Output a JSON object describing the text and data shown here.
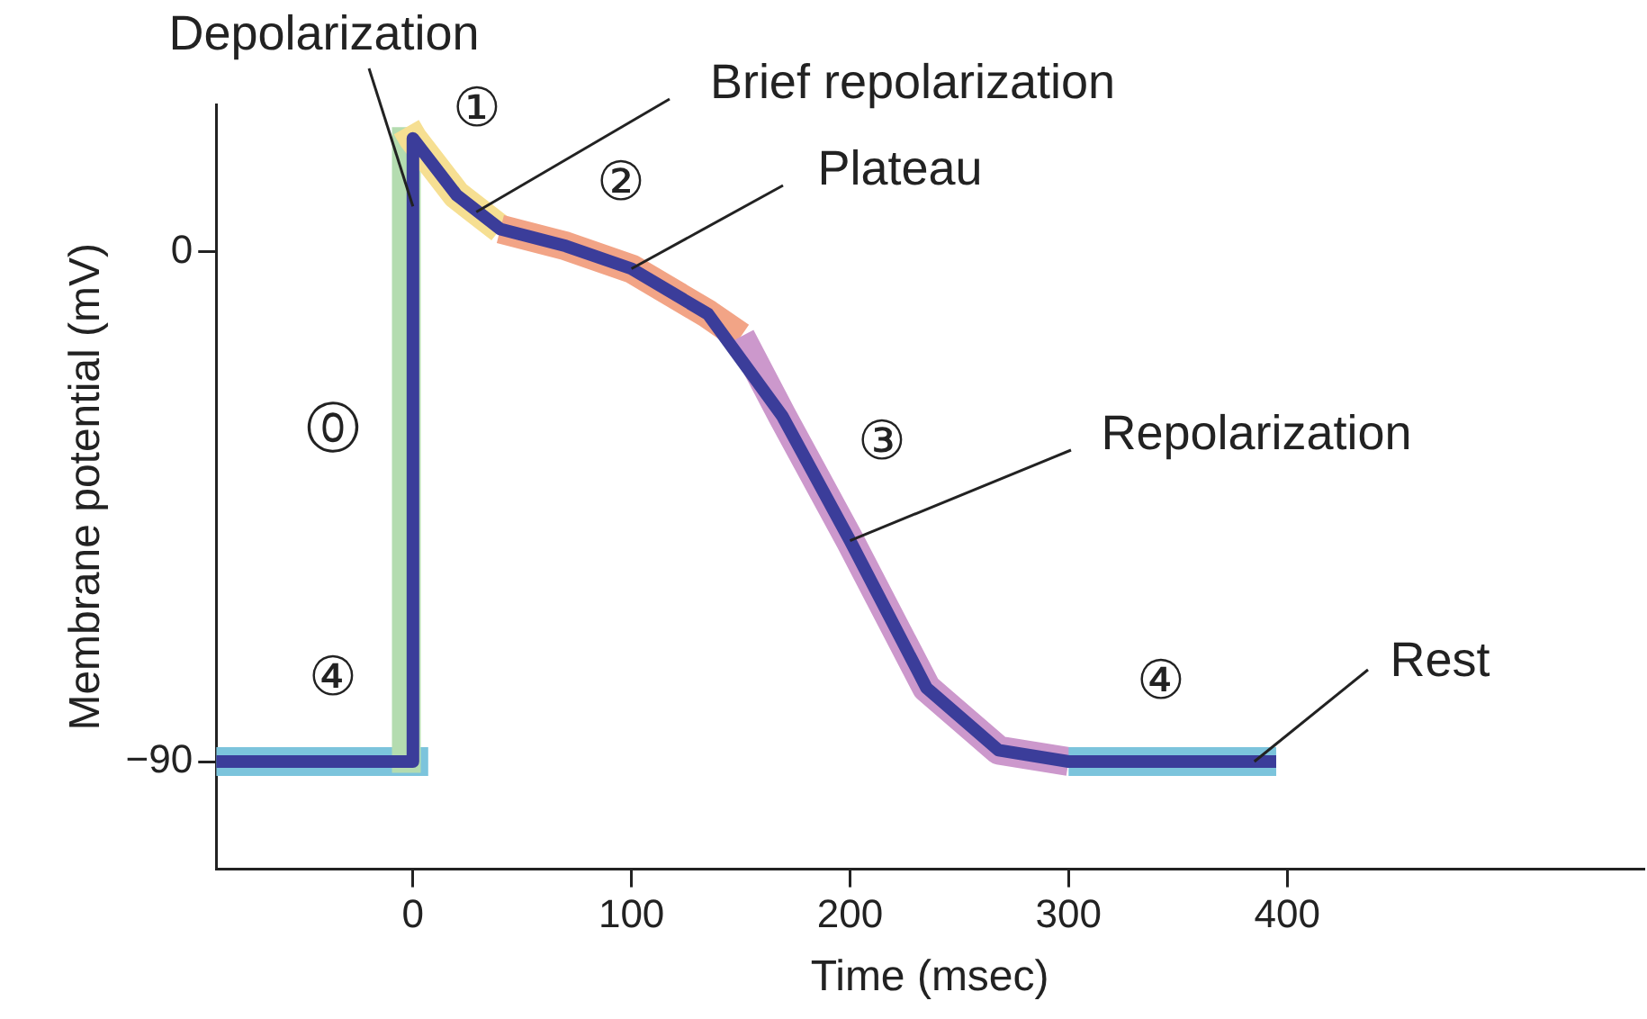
{
  "chart_data": {
    "type": "line",
    "xlabel": "Time (msec)",
    "ylabel": "Membrane potential (mV)",
    "xlim": [
      -90,
      563
    ],
    "ylim": [
      -109,
      26
    ],
    "xticks": [
      0,
      100,
      200,
      300,
      400
    ],
    "yticks": [
      {
        "value": -90,
        "label": "−90"
      },
      0
    ],
    "grid": false,
    "legend": false,
    "marker": "none",
    "line_style": "solid",
    "series": [
      {
        "color": "#7cc4dc",
        "x": [
          -90,
          7
        ],
        "values": [
          -90,
          -90
        ]
      },
      {
        "color": "#b4dcb0",
        "x": [
          -3,
          -3
        ],
        "values": [
          -92,
          22
        ]
      },
      {
        "color": "#f6df92",
        "x": [
          -3,
          0,
          20,
          40
        ],
        "values": [
          22,
          20,
          10,
          4
        ]
      },
      {
        "color": "#f2a486",
        "x": [
          40,
          70,
          100,
          135,
          150
        ],
        "values": [
          4,
          1,
          -3,
          -11,
          -15
        ]
      },
      {
        "color": "#cc98cc",
        "x": [
          150,
          169,
          200,
          235,
          268,
          300
        ],
        "values": [
          -15,
          -29,
          -51,
          -77,
          -88,
          -90
        ]
      },
      {
        "color": "#7cc4dc",
        "x": [
          300,
          395
        ],
        "values": [
          -90,
          -90
        ]
      },
      {
        "color": "#3b3d9a",
        "x": [
          -90,
          0,
          0,
          20,
          40,
          70,
          100,
          135,
          169,
          200,
          235,
          268,
          300,
          395
        ],
        "values": [
          -90,
          -90,
          20,
          10,
          4,
          1,
          -3,
          -11,
          -29,
          -51,
          -77,
          -88,
          -90,
          -90
        ]
      }
    ],
    "annotations": [
      {
        "text": "Depolarization",
        "x": 0,
        "y": 8
      },
      {
        "text": "Brief repolarization",
        "x": 29,
        "y": 7
      },
      {
        "text": "Plateau",
        "x": 100,
        "y": -3
      },
      {
        "text": "Repolarization",
        "x": 200,
        "y": -51
      },
      {
        "text": "Rest",
        "x": 385,
        "y": -90
      },
      "⓪",
      "④",
      "①",
      "②",
      "③",
      "④"
    ]
  }
}
